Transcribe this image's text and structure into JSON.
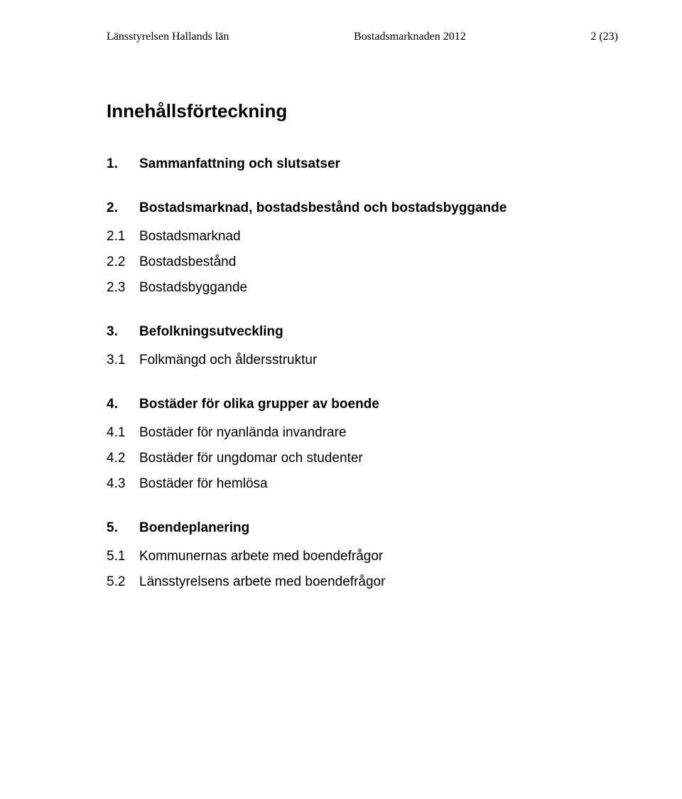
{
  "header": {
    "left": "Länsstyrelsen Hallands län",
    "center": "Bostadsmarknaden 2012",
    "right": "2 (23)"
  },
  "toc_title": "Innehållsförteckning",
  "sections": [
    {
      "num": "1.",
      "title": "Sammanfattning och slutsatser",
      "items": []
    },
    {
      "num": "2.",
      "title": "Bostadsmarknad, bostadsbestånd och bostadsbyggande",
      "items": [
        {
          "num": "2.1",
          "label": "Bostadsmarknad"
        },
        {
          "num": "2.2",
          "label": "Bostadsbestånd"
        },
        {
          "num": "2.3",
          "label": "Bostadsbyggande"
        }
      ]
    },
    {
      "num": "3.",
      "title": "Befolkningsutveckling",
      "items": [
        {
          "num": "3.1",
          "label": "Folkmängd och åldersstruktur"
        }
      ]
    },
    {
      "num": "4.",
      "title": "Bostäder för olika grupper av boende",
      "items": [
        {
          "num": "4.1",
          "label": "Bostäder för nyanlända invandrare"
        },
        {
          "num": "4.2",
          "label": "Bostäder för ungdomar och studenter"
        },
        {
          "num": "4.3",
          "label": "Bostäder för hemlösa"
        }
      ]
    },
    {
      "num": "5.",
      "title": "Boendeplanering",
      "items": [
        {
          "num": "5.1",
          "label": "Kommunernas arbete med boendefrågor"
        },
        {
          "num": "5.2",
          "label": "Länsstyrelsens arbete med boendefrågor"
        }
      ]
    }
  ]
}
